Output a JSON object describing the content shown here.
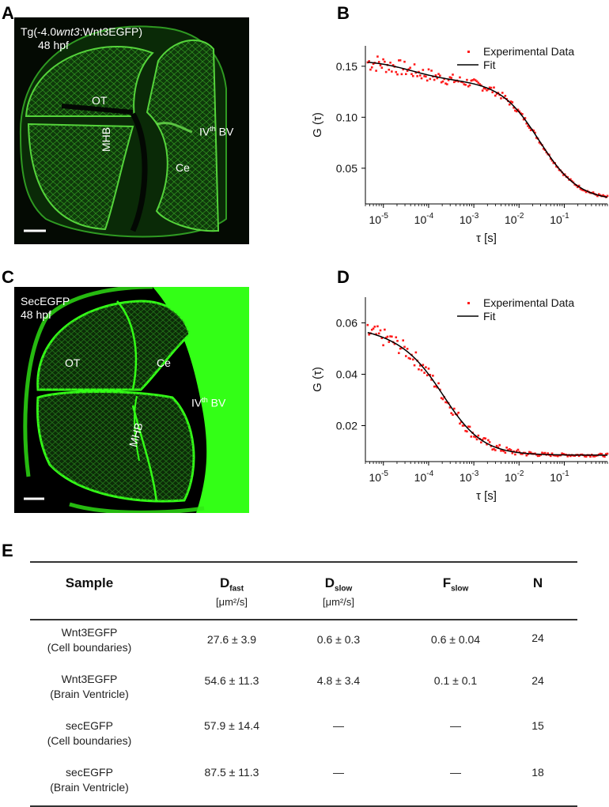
{
  "panels": {
    "A": {
      "letter": "A",
      "label_prefix": "Tg(-4.0",
      "label_italic": "wnt3",
      "label_suffix": ":Wnt3EGFP)",
      "stage": "48 hpf",
      "regions": {
        "ot": "OT",
        "mhb": "MHB",
        "ce": "Ce",
        "bv_pre": "IV",
        "bv_sup": "th",
        "bv_post": " BV"
      }
    },
    "B": {
      "letter": "B"
    },
    "C": {
      "letter": "C",
      "label": "SecEGFP",
      "stage": "48 hpf",
      "regions": {
        "ot": "OT",
        "mhb": "MHB",
        "ce": "Ce",
        "bv_pre": "IV",
        "bv_sup": "th",
        "bv_post": " BV"
      }
    },
    "D": {
      "letter": "D"
    },
    "E": {
      "letter": "E"
    }
  },
  "chart_data": [
    {
      "type": "scatter",
      "panel": "B",
      "xlabel": "τ [s]",
      "ylabel": "G (τ)",
      "xscale": "log",
      "xlim": [
        4e-06,
        0.9
      ],
      "ylim": [
        0.015,
        0.17
      ],
      "yticks": [
        0.05,
        0.1,
        0.15
      ],
      "ytick_labels": [
        "0.05",
        "0.10",
        "0.15"
      ],
      "xticks": [
        1e-05,
        0.0001,
        0.001,
        0.01,
        0.1
      ],
      "xtick_base": [
        "10",
        "10",
        "10",
        "10",
        "10"
      ],
      "xtick_exp": [
        "-5",
        "-4",
        "-3",
        "-2",
        "-1"
      ],
      "legend": {
        "data": "Experimental Data",
        "fit": "Fit",
        "placement": "top-right"
      },
      "colors": {
        "data": "#ff1a1a",
        "fit": "#000000"
      },
      "series": [
        {
          "name": "Experimental Data",
          "kind": "points",
          "model": {
            "A": 0.118,
            "tau1": 0.028,
            "B": 0.02,
            "tau2": 4e-05,
            "offset": 0.018
          }
        },
        {
          "name": "Fit",
          "kind": "line",
          "model": {
            "A": 0.118,
            "tau1": 0.028,
            "B": 0.02,
            "tau2": 4e-05,
            "offset": 0.018
          }
        }
      ]
    },
    {
      "type": "scatter",
      "panel": "D",
      "xlabel": "τ [s]",
      "ylabel": "G (τ)",
      "xscale": "log",
      "xlim": [
        4e-06,
        0.9
      ],
      "ylim": [
        0.006,
        0.07
      ],
      "yticks": [
        0.02,
        0.04,
        0.06
      ],
      "ytick_labels": [
        "0.02",
        "0.04",
        "0.06"
      ],
      "xticks": [
        1e-05,
        0.0001,
        0.001,
        0.01,
        0.1
      ],
      "xtick_base": [
        "10",
        "10",
        "10",
        "10",
        "10"
      ],
      "xtick_exp": [
        "-5",
        "-4",
        "-3",
        "-2",
        "-1"
      ],
      "legend": {
        "data": "Experimental Data",
        "fit": "Fit",
        "placement": "top-right"
      },
      "colors": {
        "data": "#ff1a1a",
        "fit": "#000000"
      },
      "series": [
        {
          "name": "Experimental Data",
          "kind": "points",
          "model": {
            "A": 0.045,
            "tau1": 0.00022,
            "B": 0.005,
            "tau2": 1.2e-05,
            "offset": 0.0085
          }
        },
        {
          "name": "Fit",
          "kind": "line",
          "model": {
            "A": 0.045,
            "tau1": 0.00022,
            "B": 0.005,
            "tau2": 1.2e-05,
            "offset": 0.0085
          }
        }
      ]
    }
  ],
  "table": {
    "headers": {
      "sample": "Sample",
      "dfast_main": "D",
      "dfast_sub": "fast",
      "dfast_unit": "[μm²/s]",
      "dslow_main": "D",
      "dslow_sub": "slow",
      "dslow_unit": "[μm²/s]",
      "fslow_main": "F",
      "fslow_sub": "slow",
      "n": "N"
    },
    "rows": [
      {
        "sample": "Wnt3EGFP",
        "sample_sub": "(Cell boundaries)",
        "dfast": "27.6 ± 3.9",
        "dslow": "0.6 ± 0.3",
        "fslow": "0.6 ± 0.04",
        "n": "24"
      },
      {
        "sample": "Wnt3EGFP",
        "sample_sub": "(Brain Ventricle)",
        "dfast": "54.6 ± 11.3",
        "dslow": "4.8 ± 3.4",
        "fslow": "0.1 ± 0.1",
        "n": "24"
      },
      {
        "sample": "secEGFP",
        "sample_sub": "(Cell boundaries)",
        "dfast": "57.9 ± 14.4",
        "dslow": "—",
        "fslow": "—",
        "n": "15"
      },
      {
        "sample": "secEGFP",
        "sample_sub": "(Brain Ventricle)",
        "dfast": "87.5 ± 11.3",
        "dslow": "—",
        "fslow": "—",
        "n": "18"
      }
    ]
  }
}
